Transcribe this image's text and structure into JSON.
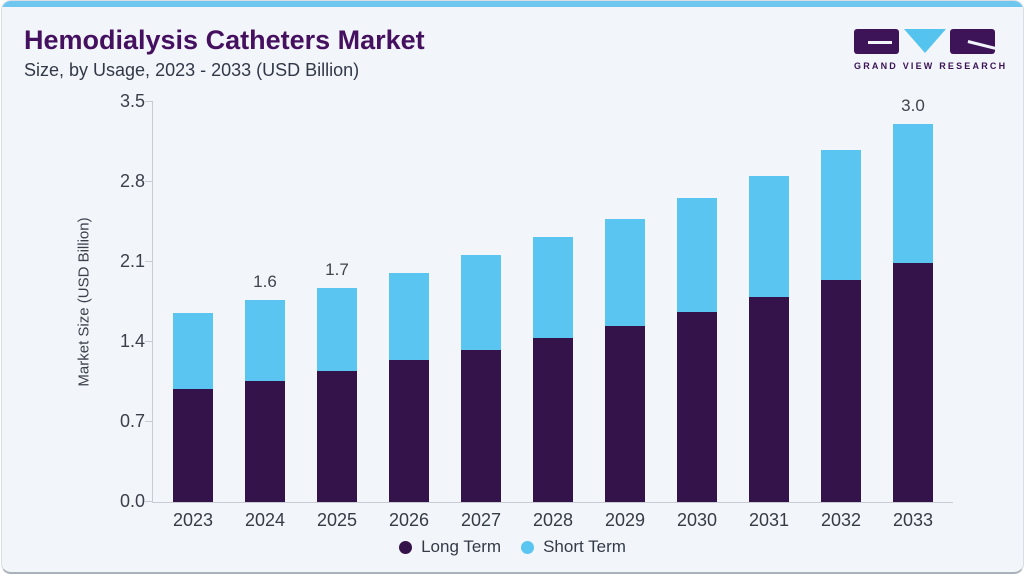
{
  "header": {
    "title": "Hemodialysis Catheters Market",
    "subtitle": "Size, by Usage, 2023 - 2033 (USD Billion)",
    "logo": {
      "text": "GRAND VIEW RESEARCH"
    }
  },
  "chart_data": {
    "type": "bar",
    "stacked": true,
    "title": "Hemodialysis Catheters Market Size, by Usage, 2023 - 2033 (USD Billion)",
    "categories": [
      "2023",
      "2024",
      "2025",
      "2026",
      "2027",
      "2028",
      "2029",
      "2030",
      "2031",
      "2032",
      "2033"
    ],
    "series": [
      {
        "name": "Long Term",
        "color": "#34134a",
        "values": [
          0.9,
          0.96,
          1.04,
          1.13,
          1.21,
          1.3,
          1.4,
          1.51,
          1.63,
          1.76,
          1.9
        ]
      },
      {
        "name": "Short Term",
        "color": "#5ac5f1",
        "values": [
          0.6,
          0.64,
          0.66,
          0.69,
          0.75,
          0.8,
          0.85,
          0.9,
          0.96,
          1.03,
          1.1
        ]
      }
    ],
    "totals": [
      1.5,
      1.6,
      1.7,
      1.82,
      1.96,
      2.1,
      2.25,
      2.41,
      2.59,
      2.79,
      3.0
    ],
    "shown_total_labels": {
      "2024": "1.6",
      "2025": "1.7",
      "2033": "3.0"
    },
    "xlabel": "",
    "ylabel": "Market Size (USD Billion)",
    "yticks": [
      "0.0",
      "0.7",
      "1.4",
      "2.1",
      "2.8",
      "3.5"
    ],
    "ylim": [
      0,
      3.5
    ],
    "gridlines": false,
    "legend_position": "bottom"
  },
  "colors": {
    "card_background": "#f2f6fa",
    "top_accent": "#6fc7f0",
    "title": "#45105f",
    "axis_line": "#c7ccd4",
    "long_term_bar": "#34134a",
    "short_term_bar": "#5ac5f1",
    "logo_purple": "#3d1457",
    "logo_blue": "#54c3ee"
  }
}
